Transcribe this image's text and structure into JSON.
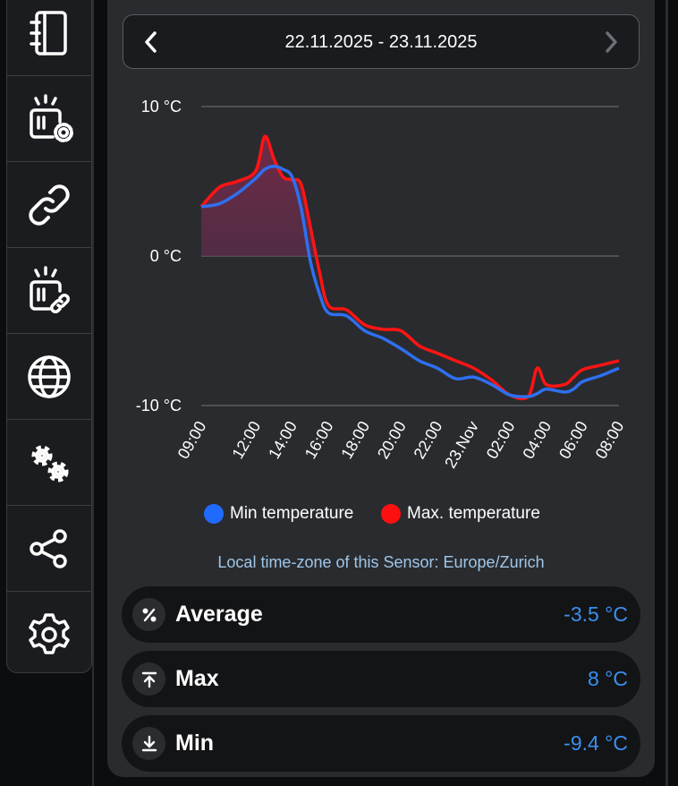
{
  "sidebar": {
    "items": [
      {
        "icon": "notebook-icon"
      },
      {
        "icon": "sensor-settings-icon"
      },
      {
        "icon": "link-icon"
      },
      {
        "icon": "sensor-link-icon"
      },
      {
        "icon": "globe-icon"
      },
      {
        "icon": "gears-icon"
      },
      {
        "icon": "share-icon"
      },
      {
        "icon": "settings-icon"
      }
    ]
  },
  "date_range": {
    "label": "22.11.2025 - 23.11.2025",
    "prev_icon": "chevron-left-icon",
    "next_icon": "chevron-right-icon"
  },
  "chart_data": {
    "type": "area",
    "x": [
      "09:00",
      "10:00",
      "11:00",
      "12:00",
      "12:30",
      "13:00",
      "13:30",
      "14:00",
      "14:30",
      "15:00",
      "15:30",
      "16:00",
      "17:00",
      "18:00",
      "19:00",
      "20:00",
      "21:00",
      "22:00",
      "23:00",
      "00:00",
      "01:00",
      "02:00",
      "03:00",
      "03:30",
      "04:00",
      "05:00",
      "05:30",
      "06:00",
      "07:00",
      "08:00"
    ],
    "series": [
      {
        "name": "Min temperature",
        "color": "#2f6ff0",
        "values": [
          3.3,
          3.5,
          4.2,
          5.2,
          5.8,
          6.0,
          5.8,
          5.3,
          3.2,
          -0.3,
          -2.5,
          -3.8,
          -4.0,
          -5.0,
          -5.5,
          -6.2,
          -7.0,
          -7.5,
          -8.2,
          -8.1,
          -8.6,
          -9.3,
          -9.4,
          -9.2,
          -8.9,
          -9.1,
          -8.9,
          -8.4,
          -8.0,
          -7.5
        ]
      },
      {
        "name": "Max. temperature",
        "color": "#ff1414",
        "values": [
          3.3,
          4.6,
          5.0,
          5.7,
          8.0,
          6.5,
          5.3,
          5.1,
          4.8,
          2.0,
          -1.0,
          -3.3,
          -3.6,
          -4.6,
          -4.9,
          -5.0,
          -6.0,
          -6.5,
          -7.0,
          -7.5,
          -8.3,
          -9.3,
          -9.4,
          -7.5,
          -8.6,
          -8.6,
          -8.1,
          -7.6,
          -7.3,
          -7.0
        ]
      }
    ],
    "ticks_x": [
      "09:00",
      "12:00",
      "14:00",
      "16:00",
      "18:00",
      "20:00",
      "22:00",
      "23.Nov",
      "02:00",
      "04:00",
      "06:00",
      "08:00"
    ],
    "ticks_y": [
      "10 °C",
      "0 °C",
      "-10 °C"
    ],
    "ylim": [
      -10,
      10
    ],
    "grid": true,
    "legend": "bottom-center"
  },
  "legend": {
    "min_label": "Min temperature",
    "max_label": "Max. temperature",
    "min_color": "#1f6bff",
    "max_color": "#ff1010"
  },
  "timezone_text": "Local time-zone of this Sensor: Europe/Zurich",
  "stats": {
    "average": {
      "label": "Average",
      "value": "-3.5 °C",
      "icon": "percent-icon"
    },
    "max": {
      "label": "Max",
      "value": "8 °C",
      "icon": "arrow-up-to-line-icon"
    },
    "min": {
      "label": "Min",
      "value": "-9.4 °C",
      "icon": "arrow-down-to-line-icon"
    }
  }
}
